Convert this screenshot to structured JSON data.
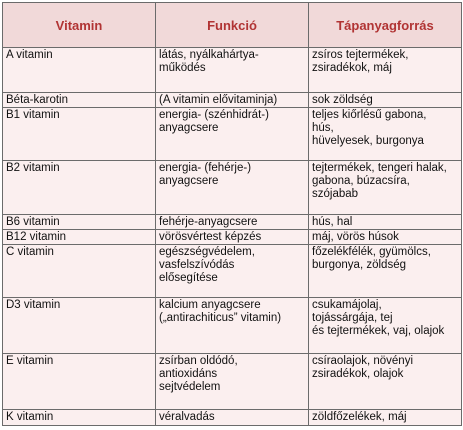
{
  "headers": [
    "Vitamin",
    "Funkció",
    "Tápanyagforrás"
  ],
  "rows": [
    {
      "vitamin": "A vitamin",
      "funkcio": "látás, nyálkahártya-\nműködés",
      "forras": "zsíros tejtermékek,\nzsiradékok, máj"
    },
    {
      "vitamin": "Béta-karotin",
      "funkcio": "(A vitamin elővitaminja)",
      "forras": "sok zöldség"
    },
    {
      "vitamin": "B1 vitamin",
      "funkcio": "energia- (szénhidrát-)\nanyagcsere",
      "forras": "teljes kiőrlésű gabona,\nhús,\nhüvelyesek, burgonya"
    },
    {
      "vitamin": "B2 vitamin",
      "funkcio": "energia- (fehérje-)\nanyagcsere",
      "forras": "tejtermékek, tengeri halak,\ngabona, búzacsíra,\nszójabab"
    },
    {
      "vitamin": "B6 vitamin",
      "funkcio": "fehérje-anyagcsere",
      "forras": "hús, hal"
    },
    {
      "vitamin": "B12 vitamin",
      "funkcio": "vörösvértest képzés",
      "forras": " máj, vörös húsok"
    },
    {
      "vitamin": "C vitamin",
      "funkcio": "egészségvédelem,\nvasfelszívódás\nelősegítése",
      "forras": "főzelékfélék, gyümölcs,\nburgonya, zöldség"
    },
    {
      "vitamin": "D3 vitamin",
      "funkcio": "kalcium anyagcsere\n(„antirachiticus” vitamin)",
      "forras": "csukamájolaj,\ntojássárgája, tej\nés tejtermékek, vaj, olajok"
    },
    {
      "vitamin": "E vitamin",
      "funkcio": "zsírban oldódó,\nantioxidáns\nsejtvédelem",
      "forras": "csíraolajok, növényi\nzsiradékok, olajok"
    },
    {
      "vitamin": "K vitamin",
      "funkcio": "véralvadás",
      "forras": "zöldfőzelékek, máj"
    }
  ]
}
